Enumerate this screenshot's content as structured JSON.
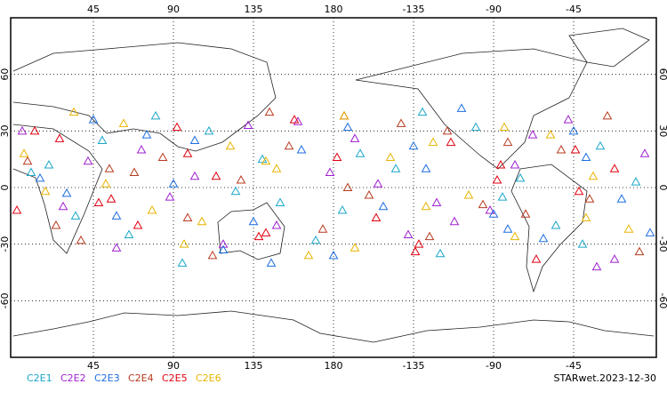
{
  "chart_data": {
    "type": "scatter",
    "title": "STARwet.2023-12-30",
    "xlim": [
      0,
      360
    ],
    "ylim": [
      -90,
      90
    ],
    "xticks": [
      45,
      90,
      135,
      180,
      {
        "value": 225,
        "label": "-135"
      },
      {
        "value": 270,
        "label": "-90"
      },
      {
        "value": 315,
        "label": "-45"
      }
    ],
    "yticks": [
      60,
      30,
      0,
      -30,
      -60
    ],
    "grid": true,
    "series": [
      {
        "name": "C2E1",
        "color": "#1aa6c8",
        "x": [
          20,
          65,
          110,
          150,
          195,
          240,
          285,
          330,
          35,
          80,
          125,
          170,
          215,
          260,
          305,
          350,
          50,
          95,
          140,
          185,
          230,
          275,
          320,
          10
        ],
        "values": [
          12,
          -25,
          30,
          -8,
          18,
          -35,
          5,
          22,
          -15,
          38,
          -2,
          -28,
          10,
          32,
          -20,
          3,
          25,
          -40,
          15,
          -12,
          40,
          -5,
          -30,
          8
        ]
      },
      {
        "name": "C2E2",
        "color": "#a020d0",
        "x": [
          28,
          72,
          118,
          160,
          205,
          248,
          292,
          338,
          42,
          88,
          132,
          178,
          222,
          268,
          312,
          355,
          58,
          102,
          148,
          192,
          238,
          282,
          328,
          5
        ],
        "values": [
          -10,
          20,
          -30,
          35,
          2,
          -18,
          28,
          -38,
          14,
          -5,
          33,
          8,
          -25,
          -12,
          36,
          18,
          -32,
          6,
          -20,
          26,
          -8,
          12,
          -42,
          30
        ]
      },
      {
        "name": "C2E3",
        "color": "#1e6ee0",
        "x": [
          15,
          58,
          102,
          145,
          188,
          232,
          278,
          322,
          30,
          75,
          118,
          162,
          208,
          252,
          298,
          342,
          45,
          90,
          135,
          180,
          225,
          270,
          315,
          358
        ],
        "values": [
          5,
          -15,
          25,
          -40,
          32,
          10,
          -22,
          16,
          -3,
          28,
          -33,
          20,
          -10,
          42,
          -27,
          -6,
          36,
          2,
          -18,
          -36,
          22,
          -14,
          30,
          -24
        ]
      },
      {
        "name": "C2E4",
        "color": "#b83a1e",
        "x": [
          24,
          68,
          112,
          155,
          200,
          244,
          288,
          334,
          38,
          84,
          128,
          174,
          218,
          264,
          308,
          352,
          54,
          98,
          144,
          188,
          234,
          278,
          324,
          8
        ],
        "values": [
          -20,
          8,
          -36,
          22,
          -4,
          30,
          -14,
          38,
          -28,
          16,
          4,
          -22,
          34,
          -9,
          20,
          -34,
          10,
          -16,
          40,
          0,
          -26,
          24,
          -6,
          14
        ]
      },
      {
        "name": "C2E5",
        "color": "#e00010",
        "x": [
          12,
          55,
          98,
          142,
          186,
          228,
          274,
          318,
          26,
          70,
          114,
          158,
          204,
          246,
          294,
          338,
          48,
          92,
          138,
          182,
          226,
          272,
          316,
          2
        ],
        "values": [
          30,
          -6,
          18,
          -24,
          38,
          -30,
          12,
          -2,
          26,
          -20,
          6,
          36,
          -16,
          24,
          -38,
          10,
          -8,
          32,
          -26,
          16,
          -34,
          4,
          20,
          -12
        ]
      },
      {
        "name": "C2E6",
        "color": "#e8b400",
        "x": [
          18,
          62,
          106,
          148,
          192,
          236,
          282,
          326,
          34,
          78,
          122,
          166,
          212,
          256,
          302,
          346,
          52,
          96,
          142,
          186,
          232,
          276,
          322,
          6
        ],
        "values": [
          -2,
          34,
          -18,
          10,
          -32,
          24,
          -26,
          6,
          40,
          -12,
          22,
          -36,
          16,
          -4,
          28,
          -22,
          2,
          -30,
          14,
          38,
          -10,
          32,
          -16,
          18
        ]
      }
    ]
  }
}
